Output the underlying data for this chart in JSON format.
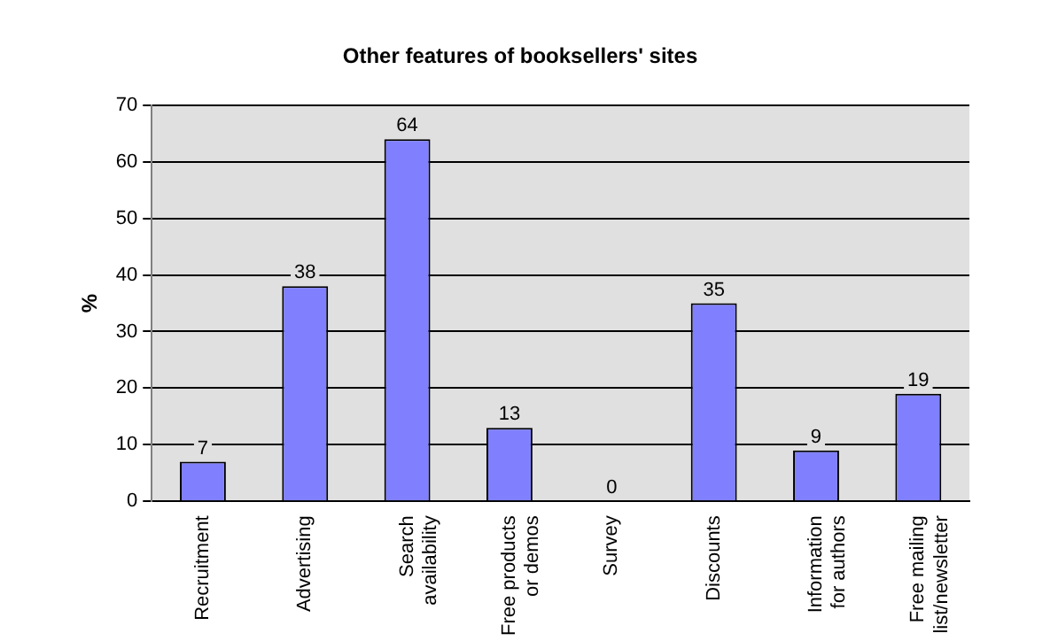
{
  "chart_data": {
    "type": "bar",
    "title": "Other features of booksellers' sites",
    "ylabel": "%",
    "categories": [
      "Recruitment",
      "Advertising",
      "Search availability",
      "Free products or demos",
      "Survey",
      "Discounts",
      "Information for authors",
      "Free mailing list/newsletter"
    ],
    "values": [
      7,
      38,
      64,
      13,
      0,
      35,
      9,
      19
    ],
    "color": "#8080ff",
    "ylim": [
      0,
      70
    ],
    "yticks": [
      0,
      10,
      20,
      30,
      40,
      50,
      60,
      70
    ],
    "grid": "y",
    "data_labels": true,
    "legend": false
  }
}
